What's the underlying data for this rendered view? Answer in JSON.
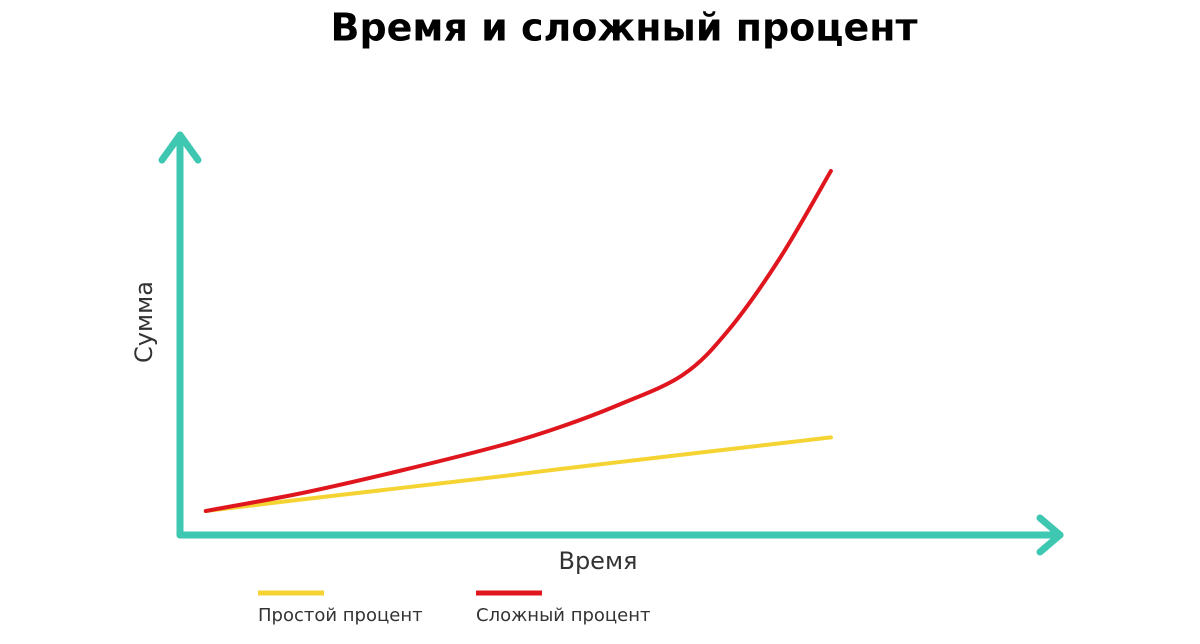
{
  "chart_data": {
    "type": "line",
    "title": "Время и сложный процент",
    "x_label": "Время",
    "y_label": "Сумма",
    "x": [
      0.4,
      1.9,
      3.4,
      5.0,
      5.9,
      6.8,
      7.8,
      8.5,
      9.3,
      10.1
    ],
    "series": [
      {
        "name": "Простой процент",
        "color": "#f5d332",
        "values": [
          6,
          8.9,
          11.7,
          14.7,
          16.5,
          18.2,
          20.1,
          21.4,
          22.9,
          24.4
        ]
      },
      {
        "name": "Сложный процент",
        "color": "#e0161e",
        "values": [
          6,
          10.5,
          16,
          22.5,
          27,
          32.5,
          40,
          51,
          69,
          91
        ]
      }
    ],
    "xlim": [
      0,
      13.5
    ],
    "ylim": [
      0,
      100
    ],
    "grid": false
  }
}
